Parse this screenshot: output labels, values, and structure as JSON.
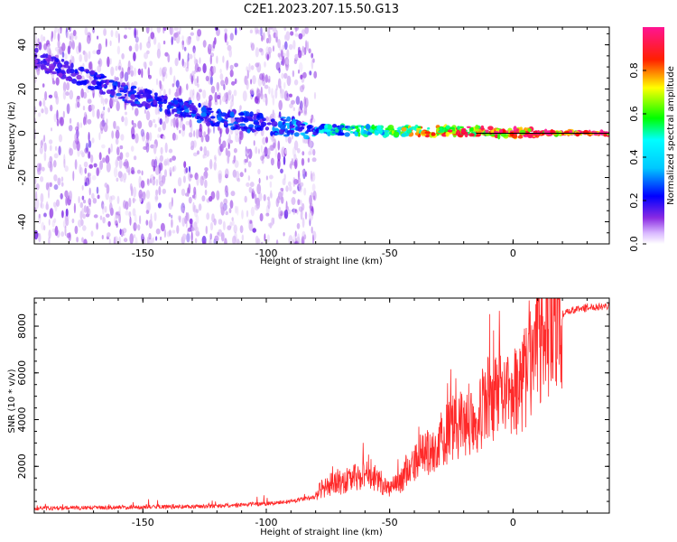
{
  "title": "C2E1.2023.207.15.50.G13",
  "chart_data": [
    {
      "type": "heatmap",
      "xlabel": "Height of straight line (km)",
      "ylabel": "Frequency (Hz)",
      "xlim": [
        -194,
        39
      ],
      "ylim": [
        -50,
        48
      ],
      "xticks": [
        -150,
        -100,
        -50,
        0
      ],
      "yticks": [
        -40,
        -20,
        0,
        20,
        40
      ],
      "colorbar": {
        "label": "Normalized spectral amplitude",
        "range": [
          0,
          1
        ],
        "ticks": [
          0.0,
          0.2,
          0.4,
          0.6,
          0.8
        ],
        "colormap": [
          "#ffffff",
          "#8a2be2",
          "#0000ff",
          "#00ffff",
          "#00ff00",
          "#ffff00",
          "#ff0000",
          "#ff1493"
        ]
      },
      "ridge": {
        "height_km": [
          -194,
          -175,
          -160,
          -145,
          -130,
          -115,
          -100,
          -85,
          -70,
          -55,
          -40,
          -25,
          -10,
          5,
          39
        ],
        "frequency_hz": [
          34,
          26,
          19,
          14,
          10,
          6,
          4,
          2,
          1.5,
          1,
          1,
          1,
          0.5,
          0.2,
          0
        ],
        "amplitude": [
          0.2,
          0.25,
          0.28,
          0.28,
          0.3,
          0.3,
          0.3,
          0.35,
          0.45,
          0.55,
          0.7,
          0.8,
          0.85,
          0.95,
          1.0
        ]
      },
      "background": {
        "lower_height_km": -194,
        "upper_height_km": -80,
        "amplitude": 0.1
      },
      "series": [
        {
          "frequency_hz": 0,
          "line_color": "#000000"
        }
      ]
    },
    {
      "type": "line",
      "xlabel": "Height of straight line (km)",
      "ylabel": "SNR (10 * v/v)",
      "xlim": [
        -194,
        39
      ],
      "ylim": [
        0,
        9200
      ],
      "xticks": [
        -150,
        -100,
        -50,
        0
      ],
      "yticks": [
        2000,
        4000,
        6000,
        8000
      ],
      "series": [
        {
          "color": "#ff2a2a",
          "x": [
            -194,
            -180,
            -160,
            -140,
            -120,
            -100,
            -90,
            -80,
            -78,
            -75,
            -70,
            -65,
            -60,
            -55,
            -50,
            -47,
            -45,
            -42,
            -40,
            -38,
            -35,
            -32,
            -30,
            -28,
            -25,
            -22,
            -20,
            -18,
            -15,
            -12,
            -10,
            -8,
            -5,
            -2,
            0,
            3,
            5,
            8,
            10,
            12,
            15,
            18,
            20,
            25,
            30,
            35,
            39
          ],
          "y": [
            200,
            220,
            250,
            270,
            300,
            400,
            500,
            700,
            1000,
            1200,
            1300,
            1500,
            1600,
            1500,
            1000,
            1200,
            1500,
            1900,
            2000,
            2400,
            2600,
            2800,
            3000,
            3300,
            3600,
            3700,
            3800,
            3900,
            4200,
            4500,
            4800,
            5000,
            4700,
            4800,
            5000,
            5400,
            6000,
            6500,
            7000,
            7400,
            7900,
            8200,
            8500,
            8700,
            8800,
            8850,
            8900
          ]
        }
      ]
    }
  ]
}
